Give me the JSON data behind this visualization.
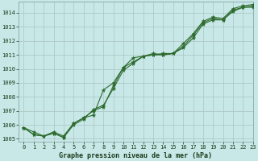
{
  "title": "Graphe pression niveau de la mer (hPa)",
  "background_color": "#c8e8e8",
  "grid_color": "#b0c8c8",
  "line_color": "#2d6a2d",
  "xlim": [
    -0.5,
    23
  ],
  "ylim": [
    1004.8,
    1014.8
  ],
  "yticks": [
    1005,
    1006,
    1007,
    1008,
    1009,
    1010,
    1011,
    1012,
    1013,
    1014
  ],
  "xticks": [
    0,
    1,
    2,
    3,
    4,
    5,
    6,
    7,
    8,
    9,
    10,
    11,
    12,
    13,
    14,
    15,
    16,
    17,
    18,
    19,
    20,
    21,
    22,
    23
  ],
  "series": [
    [
      1005.8,
      1005.3,
      1005.2,
      1005.4,
      1005.1,
      1006.1,
      1006.5,
      1007.0,
      1007.3,
      1008.8,
      1010.1,
      1010.5,
      1010.9,
      1011.0,
      1011.0,
      1011.1,
      1011.5,
      1012.2,
      1013.2,
      1013.5,
      1013.5,
      1014.2,
      1014.4,
      1014.4
    ],
    [
      1005.8,
      1005.5,
      1005.2,
      1005.5,
      1005.2,
      1006.1,
      1006.5,
      1006.7,
      1008.5,
      1009.0,
      1010.1,
      1010.8,
      1010.9,
      1011.1,
      1011.0,
      1011.1,
      1011.6,
      1012.4,
      1013.3,
      1013.6,
      1013.5,
      1014.1,
      1014.4,
      1014.5
    ],
    [
      1005.8,
      1005.3,
      1005.2,
      1005.4,
      1005.1,
      1006.0,
      1006.4,
      1007.1,
      1007.4,
      1008.6,
      1009.9,
      1010.4,
      1010.9,
      1011.0,
      1011.1,
      1011.1,
      1011.8,
      1012.5,
      1013.4,
      1013.7,
      1013.6,
      1014.3,
      1014.5,
      1014.6
    ]
  ]
}
